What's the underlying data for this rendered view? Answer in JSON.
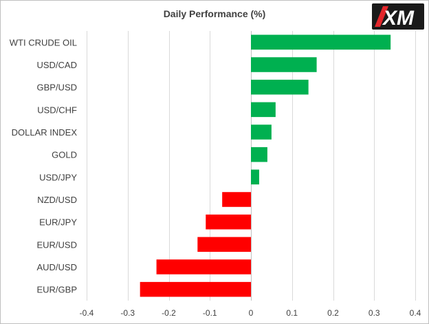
{
  "chart_data": {
    "type": "bar",
    "orientation": "horizontal",
    "title": "Daily Performance (%)",
    "categories": [
      "WTI CRUDE OIL",
      "USD/CAD",
      "GBP/USD",
      "USD/CHF",
      "DOLLAR INDEX",
      "GOLD",
      "USD/JPY",
      "NZD/USD",
      "EUR/JPY",
      "EUR/USD",
      "AUD/USD",
      "EUR/GBP"
    ],
    "values": [
      0.34,
      0.16,
      0.14,
      0.06,
      0.05,
      0.04,
      0.02,
      -0.07,
      -0.11,
      -0.13,
      -0.23,
      -0.27
    ],
    "xlim": [
      -0.4,
      0.4
    ],
    "xticks": [
      -0.4,
      -0.3,
      -0.2,
      -0.1,
      0,
      0.1,
      0.2,
      0.3,
      0.4
    ],
    "grid": "vertical",
    "colors": {
      "positive": "#00b050",
      "negative": "#ff0000"
    },
    "xlabel": "",
    "ylabel": ""
  },
  "logo": {
    "text": "XM",
    "bg_color": "#1a1a1a",
    "accent_color": "#e3262b"
  }
}
